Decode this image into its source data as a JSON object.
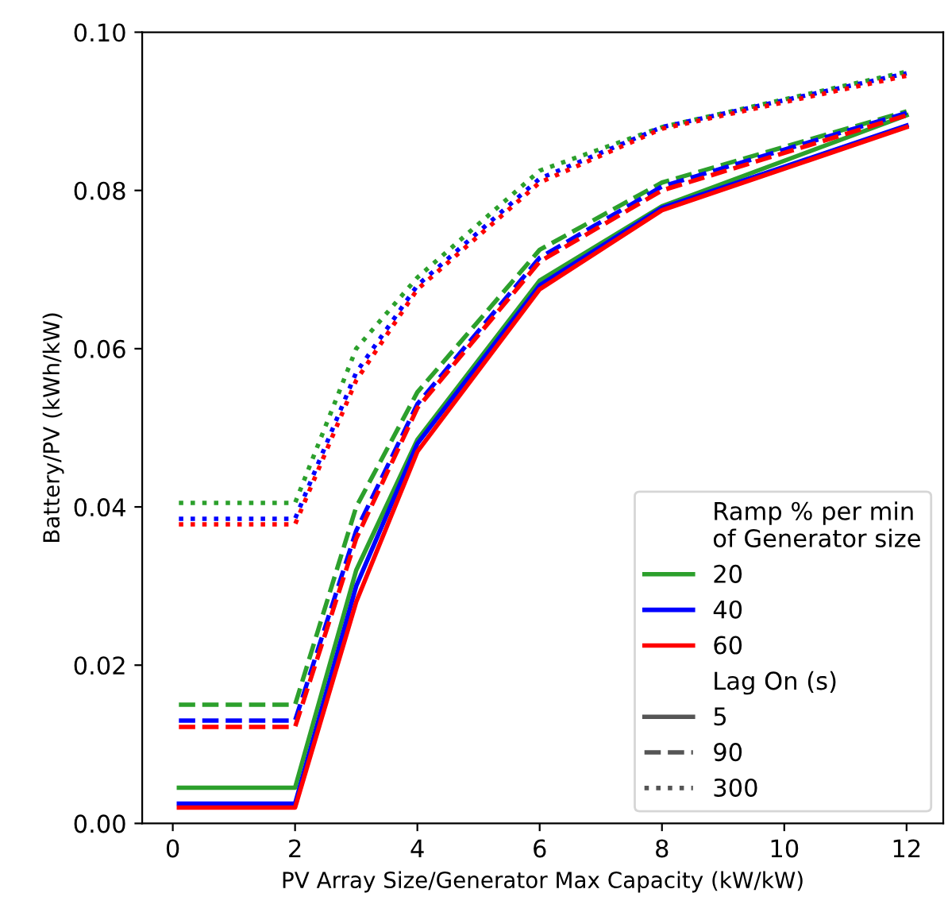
{
  "chart_data": {
    "type": "line",
    "xlabel": "PV Array Size/Generator Max Capacity (kW/kW)",
    "ylabel": "Battery/PV (kWh/kW)",
    "x": [
      0.1,
      2,
      3,
      4,
      6,
      8,
      12
    ],
    "xlim": [
      -0.5,
      12.6
    ],
    "xticks": [
      0,
      2,
      4,
      6,
      8,
      10,
      12
    ],
    "ylim": [
      0,
      0.1
    ],
    "yticks": [
      {
        "value": 0,
        "label": "0.00"
      },
      {
        "value": 0.02,
        "label": "0.02"
      },
      {
        "value": 0.04,
        "label": "0.04"
      },
      {
        "value": 0.06,
        "label": "0.06"
      },
      {
        "value": 0.08,
        "label": "0.08"
      },
      {
        "value": 0.1,
        "label": "0.10"
      }
    ],
    "legend": "lower right",
    "legend_title": [
      "Ramp % per min\nof Generator size",
      "Lag On (s)"
    ],
    "grid": false,
    "marker": "none",
    "series": [
      {
        "color": "#2ca02c",
        "line_style": "solid",
        "values": [
          0.0045,
          0.0045,
          0.032,
          0.0485,
          0.0686,
          0.078,
          0.0895
        ]
      },
      {
        "color": "#0000ff",
        "line_style": "solid",
        "values": [
          0.0025,
          0.0025,
          0.03,
          0.048,
          0.068,
          0.0778,
          0.0882
        ]
      },
      {
        "color": "#ff0000",
        "line_style": "solid",
        "values": [
          0.002,
          0.002,
          0.028,
          0.047,
          0.0675,
          0.0775,
          0.088
        ]
      },
      {
        "color": "#2ca02c",
        "line_style": "dashed",
        "values": [
          0.015,
          0.015,
          0.04,
          0.0545,
          0.0725,
          0.081,
          0.09
        ]
      },
      {
        "color": "#0000ff",
        "line_style": "dashed",
        "values": [
          0.013,
          0.013,
          0.037,
          0.053,
          0.0715,
          0.0805,
          0.0898
        ]
      },
      {
        "color": "#ff0000",
        "line_style": "dashed",
        "values": [
          0.0122,
          0.0122,
          0.036,
          0.0525,
          0.071,
          0.08,
          0.0895
        ]
      },
      {
        "color": "#2ca02c",
        "line_style": "dotted",
        "values": [
          0.0405,
          0.0405,
          0.06,
          0.069,
          0.0825,
          0.088,
          0.095
        ]
      },
      {
        "color": "#0000ff",
        "line_style": "dotted",
        "values": [
          0.0385,
          0.0385,
          0.057,
          0.068,
          0.0815,
          0.088,
          0.0948
        ]
      },
      {
        "color": "#ff0000",
        "line_style": "dotted",
        "values": [
          0.0378,
          0.0378,
          0.056,
          0.0675,
          0.081,
          0.0878,
          0.0945
        ]
      },
      {
        "name": "20",
        "color": "#2ca02c",
        "line_style": "solid",
        "values": [
          null,
          null,
          null,
          null,
          null,
          null,
          null
        ]
      },
      {
        "name": "40",
        "color": "#0000ff",
        "line_style": "solid",
        "values": [
          null,
          null,
          null,
          null,
          null,
          null,
          null
        ]
      },
      {
        "name": "60",
        "color": "#ff0000",
        "line_style": "solid",
        "values": [
          null,
          null,
          null,
          null,
          null,
          null,
          null
        ]
      },
      {
        "name": "5",
        "color": "#555555",
        "line_style": "solid",
        "values": [
          null,
          null,
          null,
          null,
          null,
          null,
          null
        ]
      },
      {
        "name": "90",
        "color": "#555555",
        "line_style": "dashed",
        "values": [
          null,
          null,
          null,
          null,
          null,
          null,
          null
        ]
      },
      {
        "name": "300",
        "color": "#555555",
        "line_style": "dotted",
        "values": [
          null,
          null,
          null,
          null,
          null,
          null,
          null
        ]
      }
    ]
  }
}
